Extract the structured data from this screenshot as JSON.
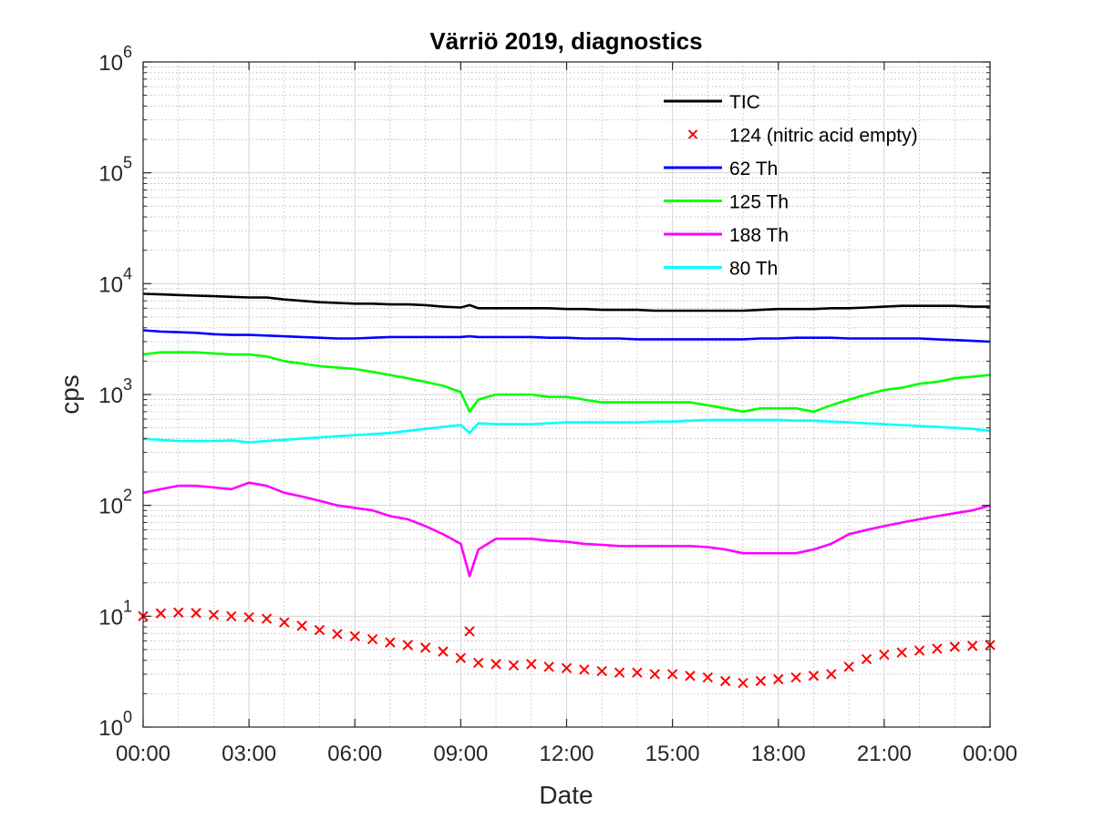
{
  "chart_data": {
    "type": "line",
    "title": "Värriö 2019, diagnostics",
    "xlabel": "Date",
    "ylabel": "cps",
    "yscale": "log",
    "ylim": [
      1,
      1000000
    ],
    "xlim": [
      "00:00",
      "24:00"
    ],
    "x_tick_labels": [
      "00:00",
      "03:00",
      "06:00",
      "09:00",
      "12:00",
      "15:00",
      "18:00",
      "21:00",
      "00:00"
    ],
    "y_tick_labels": [
      {
        "base": "10",
        "exp": "0"
      },
      {
        "base": "10",
        "exp": "1"
      },
      {
        "base": "10",
        "exp": "2"
      },
      {
        "base": "10",
        "exp": "3"
      },
      {
        "base": "10",
        "exp": "4"
      },
      {
        "base": "10",
        "exp": "5"
      },
      {
        "base": "10",
        "exp": "6"
      }
    ],
    "grid": true,
    "minor_grid": true,
    "legend_position": "top-right",
    "x_hours": [
      0,
      0.5,
      1,
      1.5,
      2,
      2.5,
      3,
      3.5,
      4,
      4.5,
      5,
      5.5,
      6,
      6.5,
      7,
      7.5,
      8,
      8.5,
      9,
      9.25,
      9.5,
      10,
      10.5,
      11,
      11.5,
      12,
      12.5,
      13,
      13.5,
      14,
      14.5,
      15,
      15.5,
      16,
      16.5,
      17,
      17.5,
      18,
      18.5,
      19,
      19.5,
      20,
      20.5,
      21,
      21.5,
      22,
      22.5,
      23,
      23.5,
      24
    ],
    "series": [
      {
        "name": "TIC",
        "color": "#000000",
        "style": "line",
        "values": [
          8100,
          8000,
          7900,
          7800,
          7700,
          7600,
          7500,
          7500,
          7200,
          7000,
          6800,
          6700,
          6600,
          6600,
          6500,
          6500,
          6400,
          6200,
          6100,
          6400,
          6000,
          6000,
          6000,
          6000,
          6000,
          5900,
          5900,
          5800,
          5800,
          5800,
          5700,
          5700,
          5700,
          5700,
          5700,
          5700,
          5800,
          5900,
          5900,
          5900,
          6000,
          6000,
          6100,
          6200,
          6300,
          6300,
          6300,
          6300,
          6200,
          6200
        ]
      },
      {
        "name": "124 (nitric acid empty)",
        "color": "#ff0000",
        "style": "marker",
        "values": [
          10,
          10.6,
          10.8,
          10.7,
          10.3,
          10,
          9.8,
          9.5,
          8.8,
          8.2,
          7.5,
          6.9,
          6.6,
          6.2,
          5.8,
          5.5,
          5.2,
          4.8,
          4.2,
          7.3,
          3.8,
          3.7,
          3.6,
          3.7,
          3.5,
          3.4,
          3.3,
          3.2,
          3.1,
          3.1,
          3.0,
          3.0,
          2.9,
          2.8,
          2.6,
          2.5,
          2.6,
          2.7,
          2.8,
          2.9,
          3.0,
          3.5,
          4.1,
          4.5,
          4.7,
          4.9,
          5.1,
          5.3,
          5.4,
          5.5
        ]
      },
      {
        "name": "62 Th",
        "color": "#0000ff",
        "style": "line",
        "values": [
          3800,
          3700,
          3650,
          3600,
          3500,
          3450,
          3450,
          3400,
          3350,
          3300,
          3250,
          3200,
          3200,
          3250,
          3300,
          3300,
          3300,
          3300,
          3300,
          3350,
          3300,
          3300,
          3300,
          3300,
          3250,
          3250,
          3200,
          3200,
          3200,
          3150,
          3150,
          3150,
          3150,
          3150,
          3150,
          3150,
          3200,
          3200,
          3250,
          3250,
          3250,
          3200,
          3200,
          3200,
          3200,
          3200,
          3150,
          3100,
          3050,
          3000
        ]
      },
      {
        "name": "125 Th",
        "color": "#00ff00",
        "style": "line",
        "values": [
          2300,
          2400,
          2400,
          2400,
          2350,
          2300,
          2300,
          2200,
          2000,
          1900,
          1800,
          1750,
          1700,
          1600,
          1500,
          1400,
          1300,
          1200,
          1050,
          700,
          900,
          1000,
          1000,
          1000,
          950,
          950,
          900,
          850,
          850,
          850,
          850,
          850,
          850,
          800,
          750,
          700,
          750,
          750,
          750,
          700,
          800,
          900,
          1000,
          1100,
          1150,
          1250,
          1300,
          1400,
          1450,
          1500
        ]
      },
      {
        "name": "188 Th",
        "color": "#ff00ff",
        "style": "line",
        "values": [
          130,
          140,
          150,
          150,
          145,
          140,
          160,
          150,
          130,
          120,
          110,
          100,
          95,
          90,
          80,
          75,
          65,
          55,
          45,
          23,
          40,
          50,
          50,
          50,
          48,
          47,
          45,
          44,
          43,
          43,
          43,
          43,
          43,
          42,
          40,
          37,
          37,
          37,
          37,
          40,
          45,
          55,
          60,
          65,
          70,
          75,
          80,
          85,
          90,
          100
        ]
      },
      {
        "name": "80 Th",
        "color": "#00ffff",
        "style": "line",
        "values": [
          400,
          390,
          380,
          380,
          380,
          385,
          370,
          380,
          390,
          400,
          410,
          420,
          430,
          440,
          450,
          470,
          490,
          510,
          530,
          450,
          550,
          540,
          540,
          540,
          550,
          560,
          560,
          560,
          560,
          560,
          570,
          570,
          580,
          590,
          590,
          590,
          590,
          590,
          580,
          580,
          570,
          560,
          550,
          540,
          530,
          520,
          510,
          500,
          490,
          470
        ]
      }
    ]
  }
}
